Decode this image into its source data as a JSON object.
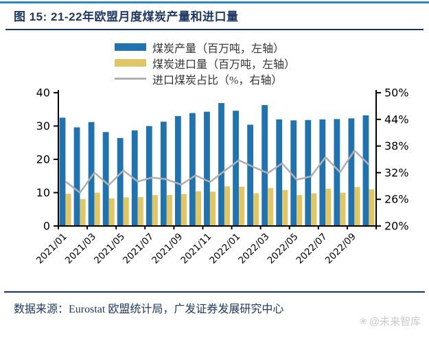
{
  "header": {
    "title": "图 15: 21-22年欧盟月度煤炭产量和进口量"
  },
  "legend": {
    "items": [
      {
        "label": "煤炭产量（百万吨，左轴）",
        "swatch": "bar",
        "color": "#2173B0"
      },
      {
        "label": "煤炭进口量（百万吨，左轴）",
        "swatch": "bar",
        "color": "#E0C664"
      },
      {
        "label": "进口煤炭占比（%，右轴）",
        "swatch": "line",
        "color": "#B0B0B0"
      }
    ]
  },
  "chart_data": {
    "type": "bar",
    "subtype": "grouped-bars-with-line-combo",
    "categories": [
      "2021/01",
      "2021/02",
      "2021/03",
      "2021/04",
      "2021/05",
      "2021/06",
      "2021/07",
      "2021/08",
      "2021/09",
      "2021/10",
      "2021/11",
      "2021/12",
      "2022/01",
      "2022/02",
      "2022/03",
      "2022/04",
      "2022/05",
      "2022/06",
      "2022/07",
      "2022/08",
      "2022/09",
      "2022/10"
    ],
    "x_tick_labels": [
      "2021/01",
      "2021/03",
      "2021/05",
      "2021/07",
      "2021/09",
      "2021/11",
      "2022/01",
      "2022/03",
      "2022/05",
      "2022/07",
      "2022/09"
    ],
    "series": [
      {
        "name": "煤炭产量（百万吨，左轴）",
        "type": "bar",
        "axis": "left",
        "color": "#2173B0",
        "values": [
          32.5,
          29.6,
          31.2,
          28.2,
          26.4,
          28.7,
          30.0,
          31.3,
          33.0,
          33.9,
          34.3,
          36.9,
          34.6,
          30.4,
          36.3,
          32.0,
          31.7,
          31.8,
          32.0,
          32.1,
          32.3,
          33.2
        ]
      },
      {
        "name": "煤炭进口量（百万吨，左轴）",
        "type": "bar",
        "axis": "left",
        "color": "#E0C664",
        "values": [
          9.7,
          8.1,
          10.0,
          8.3,
          8.6,
          8.7,
          9.3,
          9.3,
          9.6,
          10.4,
          10.3,
          11.9,
          11.8,
          9.8,
          11.4,
          10.8,
          9.3,
          9.8,
          11.2,
          10.0,
          11.7,
          11.0
        ]
      },
      {
        "name": "进口煤炭占比（%，右轴）",
        "type": "line",
        "axis": "right",
        "color": "#B0B0B0",
        "values": [
          30.0,
          27.5,
          32.0,
          29.2,
          32.5,
          30.0,
          30.9,
          30.5,
          29.3,
          31.4,
          29.9,
          32.4,
          34.8,
          33.3,
          31.9,
          34.1,
          30.4,
          31.2,
          35.5,
          32.1,
          37.0,
          33.8
        ]
      }
    ],
    "left_axis": {
      "min": 0,
      "max": 40,
      "ticks": [
        0,
        10,
        20,
        30,
        40
      ]
    },
    "right_axis": {
      "min": 20,
      "max": 50,
      "ticks": [
        20,
        26,
        32,
        38,
        44,
        50
      ],
      "tick_suffix": "%"
    },
    "grid": false,
    "legend_position": "top"
  },
  "footer": {
    "source": "数据来源：Eurostat 欧盟统计局，广发证券发展研究中心"
  },
  "watermark": {
    "icon": "flower-grid-icon",
    "text": "@未来智库"
  }
}
